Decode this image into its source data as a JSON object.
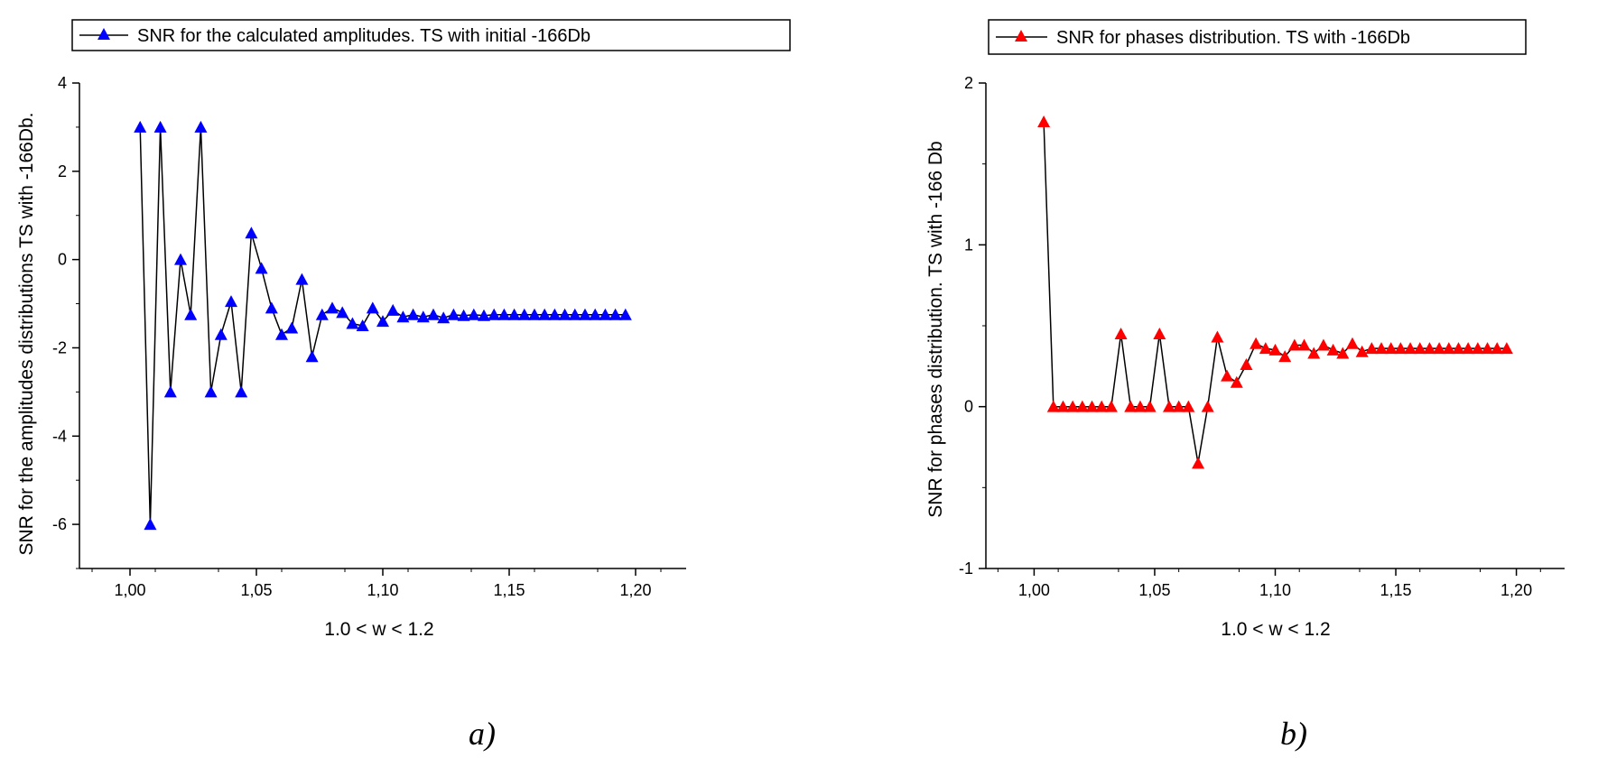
{
  "chart_data": [
    {
      "id": "a",
      "type": "line",
      "panel_label": "a)",
      "xlabel": "1.0 < w < 1.2",
      "ylabel": "SNR for the amplitudes distributions TS with -166Db.",
      "legend": "SNR for the calculated amplitudes. TS with initial -166Db",
      "legend_position": "top",
      "marker": "triangle",
      "line_color": "#000000",
      "marker_color": "#0000ff",
      "xlim": [
        0.98,
        1.22
      ],
      "ylim": [
        -7,
        4
      ],
      "xticks": [
        1.0,
        1.05,
        1.1,
        1.15,
        1.2
      ],
      "xtick_labels": [
        "1,00",
        "1,05",
        "1,10",
        "1,15",
        "1,20"
      ],
      "yticks": [
        -6,
        -4,
        -2,
        0,
        2,
        4
      ],
      "ytick_labels": [
        "-6",
        "-4",
        "-2",
        "0",
        "2",
        "4"
      ],
      "grid": false,
      "x": [
        1.004,
        1.008,
        1.012,
        1.016,
        1.02,
        1.024,
        1.028,
        1.032,
        1.036,
        1.04,
        1.044,
        1.048,
        1.052,
        1.056,
        1.06,
        1.064,
        1.068,
        1.072,
        1.076,
        1.08,
        1.084,
        1.088,
        1.092,
        1.096,
        1.1,
        1.104,
        1.108,
        1.112,
        1.116,
        1.12,
        1.124,
        1.128,
        1.132,
        1.136,
        1.14,
        1.144,
        1.148,
        1.152,
        1.156,
        1.16,
        1.164,
        1.168,
        1.172,
        1.176,
        1.18,
        1.184,
        1.188,
        1.192,
        1.196
      ],
      "y": [
        3.0,
        -6.0,
        3.0,
        -3.0,
        0.0,
        -1.25,
        3.0,
        -3.0,
        -1.7,
        -0.95,
        -3.0,
        0.6,
        -0.2,
        -1.1,
        -1.7,
        -1.55,
        -0.45,
        -2.2,
        -1.25,
        -1.1,
        -1.2,
        -1.45,
        -1.5,
        -1.1,
        -1.4,
        -1.15,
        -1.3,
        -1.25,
        -1.3,
        -1.25,
        -1.32,
        -1.25,
        -1.27,
        -1.25,
        -1.27,
        -1.25,
        -1.25,
        -1.25,
        -1.25,
        -1.25,
        -1.25,
        -1.25,
        -1.25,
        -1.25,
        -1.25,
        -1.25,
        -1.25,
        -1.25,
        -1.25
      ]
    },
    {
      "id": "b",
      "type": "line",
      "panel_label": "b)",
      "xlabel": "1.0 < w < 1.2",
      "ylabel": "SNR for phases distribution. TS with -166 Db",
      "legend": "SNR for phases distribution. TS with -166Db",
      "legend_position": "top",
      "marker": "triangle",
      "line_color": "#000000",
      "marker_color": "#ff0000",
      "xlim": [
        0.98,
        1.22
      ],
      "ylim": [
        -1,
        2
      ],
      "xticks": [
        1.0,
        1.05,
        1.1,
        1.15,
        1.2
      ],
      "xtick_labels": [
        "1,00",
        "1,05",
        "1,10",
        "1,15",
        "1,20"
      ],
      "yticks": [
        -1,
        0,
        1,
        2
      ],
      "ytick_labels": [
        "-1",
        "0",
        "1",
        "2"
      ],
      "grid": false,
      "x": [
        1.004,
        1.008,
        1.012,
        1.016,
        1.02,
        1.024,
        1.028,
        1.032,
        1.036,
        1.04,
        1.044,
        1.048,
        1.052,
        1.056,
        1.06,
        1.064,
        1.068,
        1.072,
        1.076,
        1.08,
        1.084,
        1.088,
        1.092,
        1.096,
        1.1,
        1.104,
        1.108,
        1.112,
        1.116,
        1.12,
        1.124,
        1.128,
        1.132,
        1.136,
        1.14,
        1.144,
        1.148,
        1.152,
        1.156,
        1.16,
        1.164,
        1.168,
        1.172,
        1.176,
        1.18,
        1.184,
        1.188,
        1.192,
        1.196
      ],
      "y": [
        1.76,
        0.0,
        0.0,
        0.0,
        0.0,
        0.0,
        0.0,
        0.0,
        0.45,
        0.0,
        0.0,
        0.0,
        0.45,
        0.0,
        0.0,
        0.0,
        -0.35,
        0.0,
        0.43,
        0.19,
        0.15,
        0.26,
        0.39,
        0.36,
        0.35,
        0.31,
        0.38,
        0.38,
        0.33,
        0.38,
        0.35,
        0.33,
        0.39,
        0.34,
        0.36,
        0.36,
        0.36,
        0.36,
        0.36,
        0.36,
        0.36,
        0.36,
        0.36,
        0.36,
        0.36,
        0.36,
        0.36,
        0.36,
        0.36
      ]
    }
  ]
}
